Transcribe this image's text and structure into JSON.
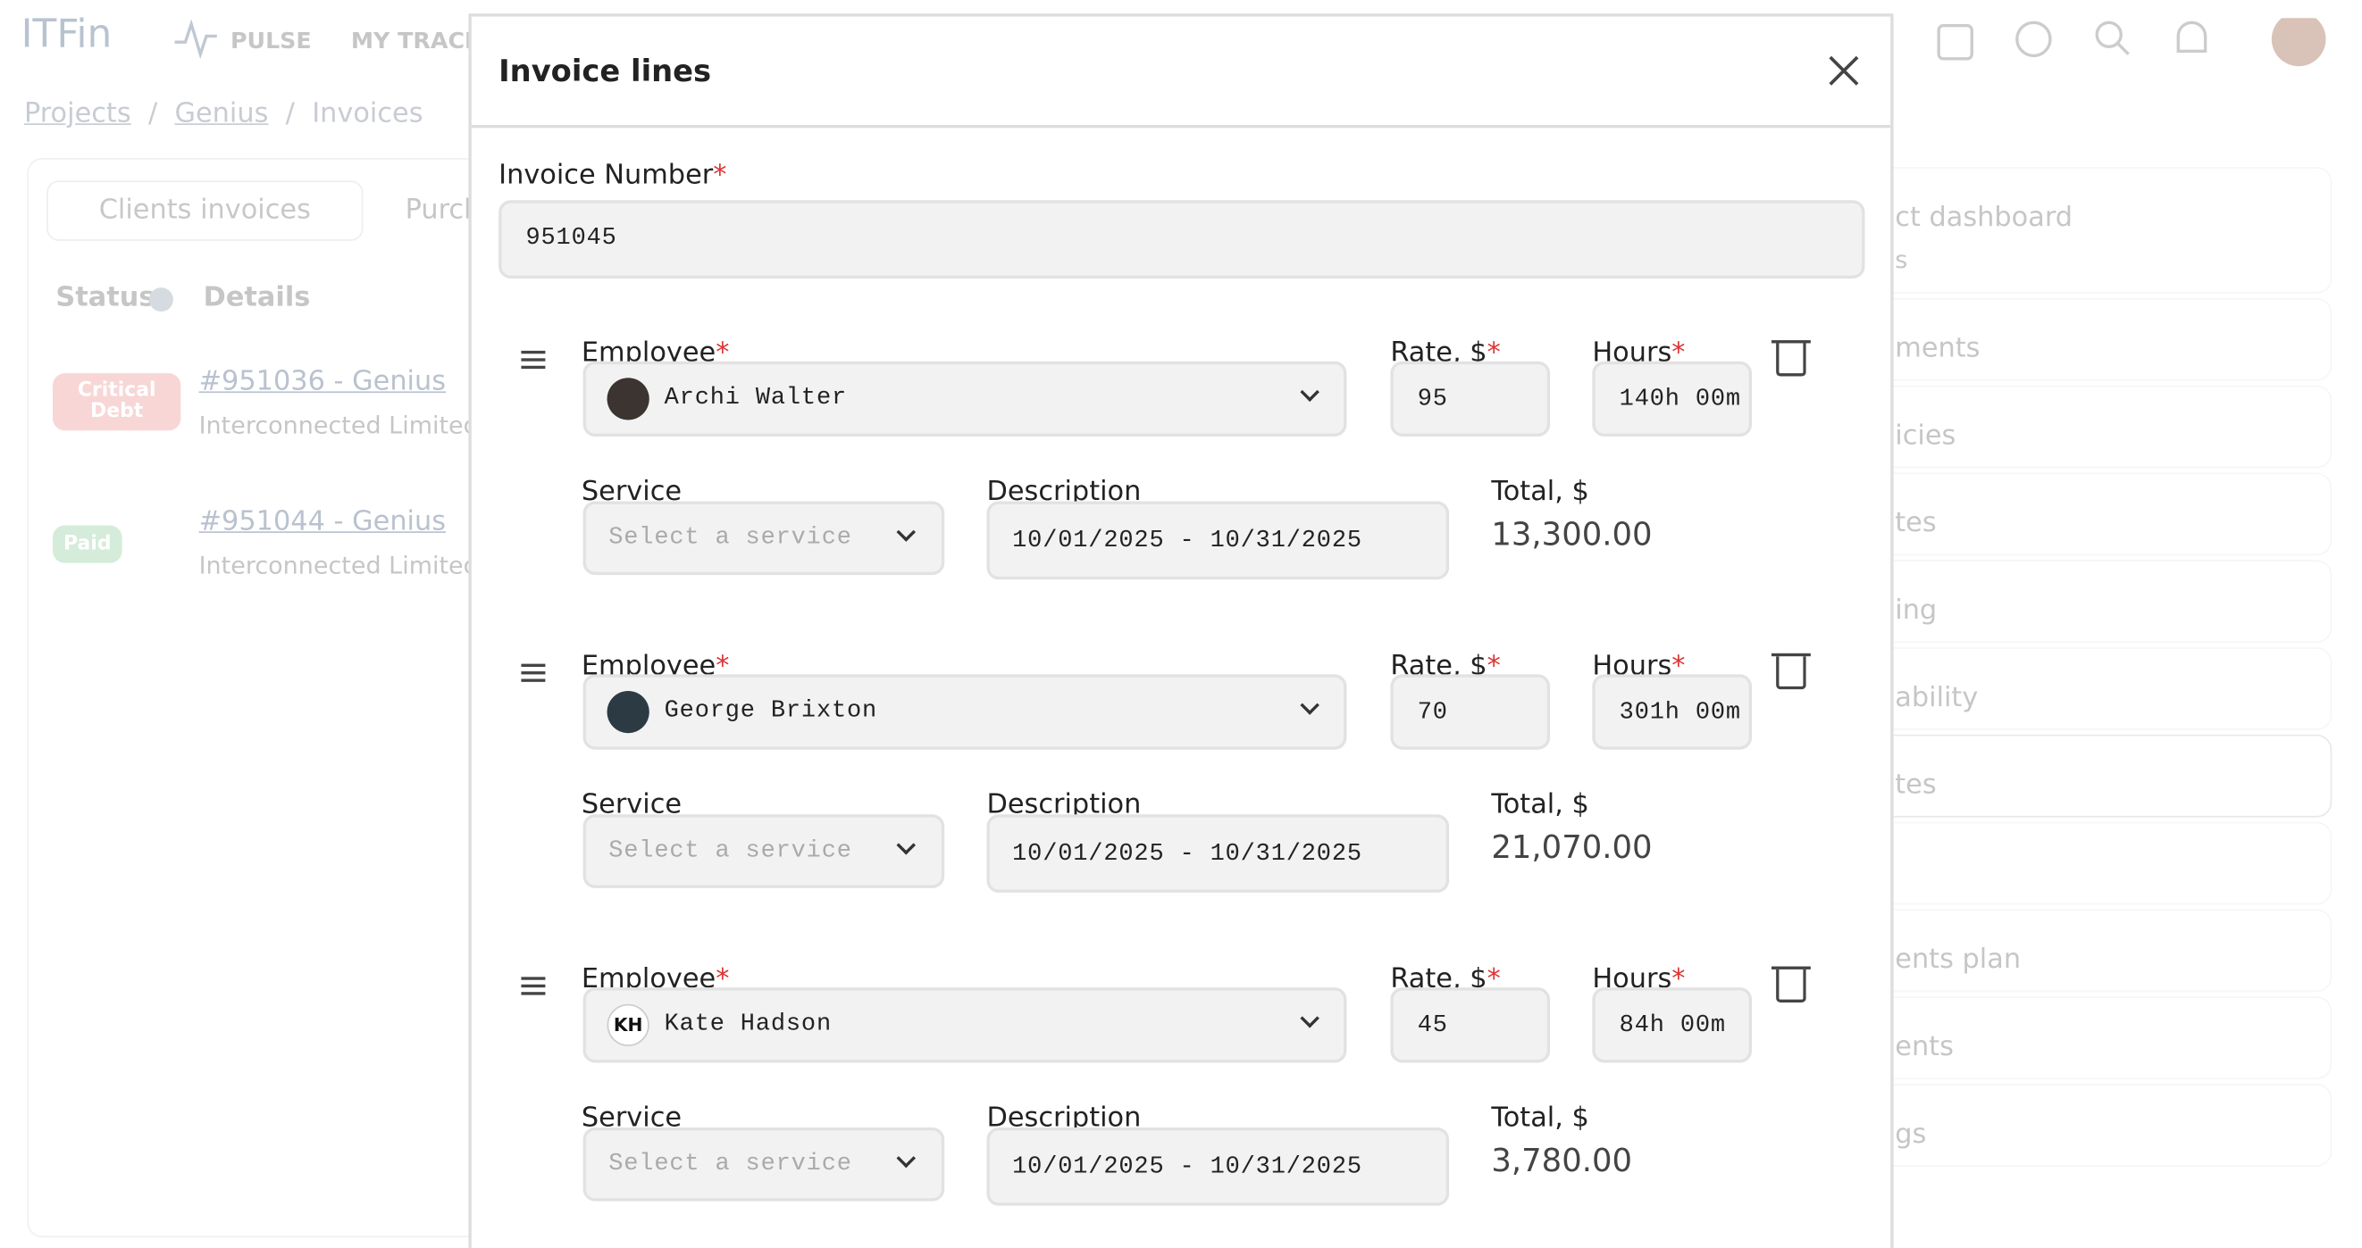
{
  "app": {
    "logo": "ITFin",
    "nav": [
      "PULSE",
      "MY TRACKER"
    ]
  },
  "breadcrumbs": [
    "Projects",
    "Genius",
    "Invoices"
  ],
  "tabs": [
    "Clients invoices",
    "Purchase invoices"
  ],
  "table": {
    "headers": [
      "Status",
      "Details"
    ],
    "rows": [
      {
        "status": "Critical Debt",
        "title": "#951036 - Genius",
        "company": "Interconnected Limited"
      },
      {
        "status": "Paid",
        "title": "#951044 - Genius",
        "company": "Interconnected Limited"
      }
    ]
  },
  "sidebar": [
    "ct dashboard",
    "s",
    "ments",
    "icies",
    "tes",
    "ing",
    "ability",
    "tes",
    "ents plan",
    "ents",
    "gs"
  ],
  "modal": {
    "title": "Invoice lines",
    "invoice_number_label": "Invoice Number",
    "invoice_number": "951045",
    "required_mark": "*",
    "labels": {
      "employee": "Employee",
      "rate": "Rate, $",
      "hours": "Hours",
      "service": "Service",
      "description": "Description",
      "total": "Total, $"
    },
    "lines": [
      {
        "employee": "Archi Walter",
        "rate": "95",
        "hours": "140h 00m",
        "service": "Select a service",
        "description": "10/01/2025 - 10/31/2025",
        "total": "13,300.00"
      },
      {
        "employee": "George Brixton",
        "rate": "70",
        "hours": "301h 00m",
        "service": "Select a service",
        "description": "10/01/2025 - 10/31/2025",
        "total": "21,070.00"
      },
      {
        "employee": "Kate Hadson",
        "initials": "KH",
        "rate": "45",
        "hours": "84h 00m",
        "service": "Select a service",
        "description": "10/01/2025 - 10/31/2025",
        "total": "3,780.00"
      }
    ]
  }
}
